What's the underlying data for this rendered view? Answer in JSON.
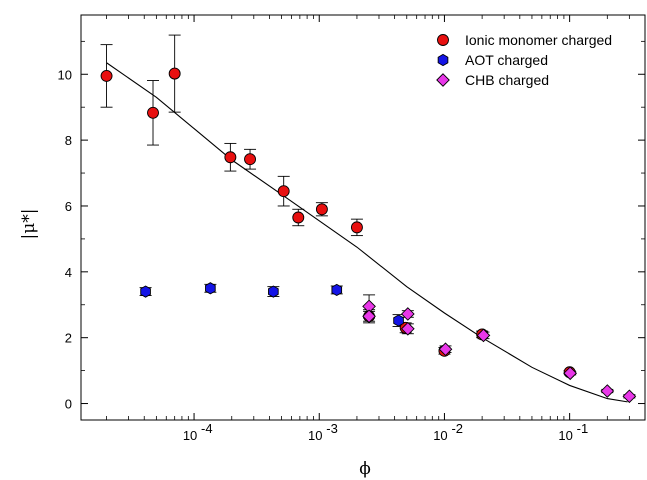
{
  "chart_data": {
    "type": "scatter",
    "xscale": "log",
    "xlim": [
      1.25e-05,
      0.4
    ],
    "ylim": [
      -0.5,
      11.8
    ],
    "xlabel": "ϕ",
    "ylabel": "|μ*|",
    "legend_position": "top-right",
    "x_ticks": [
      {
        "value": 0.0001,
        "label": "10",
        "exp": "-4"
      },
      {
        "value": 0.001,
        "label": "10",
        "exp": "-3"
      },
      {
        "value": 0.01,
        "label": "10",
        "exp": "-2"
      },
      {
        "value": 0.1,
        "label": "10",
        "exp": "-1"
      }
    ],
    "y_ticks": [
      {
        "value": 0,
        "label": "0"
      },
      {
        "value": 2,
        "label": "2"
      },
      {
        "value": 4,
        "label": "4"
      },
      {
        "value": 6,
        "label": "6"
      },
      {
        "value": 8,
        "label": "8"
      },
      {
        "value": 10,
        "label": "10"
      }
    ],
    "series": [
      {
        "name": "Ionic monomer charged",
        "marker": "circle",
        "color": "#e81010",
        "points": [
          {
            "x": 2e-05,
            "y": 9.95,
            "err": 0.95
          },
          {
            "x": 4.7e-05,
            "y": 8.83,
            "err": 0.98
          },
          {
            "x": 7e-05,
            "y": 10.02,
            "err": 1.17
          },
          {
            "x": 0.000195,
            "y": 7.48,
            "err": 0.42
          },
          {
            "x": 0.00028,
            "y": 7.42,
            "err": 0.3
          },
          {
            "x": 0.00052,
            "y": 6.45,
            "err": 0.45
          },
          {
            "x": 0.00068,
            "y": 5.65,
            "err": 0.25
          },
          {
            "x": 0.00105,
            "y": 5.9,
            "err": 0.2
          },
          {
            "x": 0.002,
            "y": 5.35,
            "err": 0.25
          },
          {
            "x": 0.0025,
            "y": 2.65,
            "err": 0.2
          },
          {
            "x": 0.0049,
            "y": 2.3,
            "err": 0.15
          },
          {
            "x": 0.01,
            "y": 1.6,
            "err": 0.1
          },
          {
            "x": 0.02,
            "y": 2.1,
            "err": 0.1
          },
          {
            "x": 0.1,
            "y": 0.95,
            "err": 0.05
          }
        ]
      },
      {
        "name": "AOT charged",
        "marker": "hexagon",
        "color": "#1414e6",
        "points": [
          {
            "x": 4.1e-05,
            "y": 3.4,
            "err": 0.12
          },
          {
            "x": 0.000135,
            "y": 3.5,
            "err": 0.12
          },
          {
            "x": 0.00043,
            "y": 3.4,
            "err": 0.15
          },
          {
            "x": 0.00138,
            "y": 3.45,
            "err": 0.12
          },
          {
            "x": 0.0043,
            "y": 2.52,
            "err": 0.18
          }
        ]
      },
      {
        "name": "CHB charged",
        "marker": "diamond",
        "color": "#e837e8",
        "points": [
          {
            "x": 0.0025,
            "y": 2.95,
            "err": 0.35
          },
          {
            "x": 0.0025,
            "y": 2.65,
            "err": 0.15
          },
          {
            "x": 0.0051,
            "y": 2.72,
            "err": 0.1
          },
          {
            "x": 0.0051,
            "y": 2.27,
            "err": 0.15
          },
          {
            "x": 0.0102,
            "y": 1.65,
            "err": 0.1
          },
          {
            "x": 0.0205,
            "y": 2.07,
            "err": 0.1
          },
          {
            "x": 0.101,
            "y": 0.92,
            "err": 0.05
          },
          {
            "x": 0.2,
            "y": 0.38,
            "err": 0.05
          },
          {
            "x": 0.3,
            "y": 0.22,
            "err": 0.05
          }
        ]
      }
    ],
    "fit_curve": {
      "name": "fit",
      "color": "#000000",
      "points": [
        {
          "x": 2e-05,
          "y": 10.35
        },
        {
          "x": 5e-05,
          "y": 9.3
        },
        {
          "x": 0.0001,
          "y": 8.35
        },
        {
          "x": 0.0002,
          "y": 7.4
        },
        {
          "x": 0.0005,
          "y": 6.35
        },
        {
          "x": 0.001,
          "y": 5.55
        },
        {
          "x": 0.002,
          "y": 4.75
        },
        {
          "x": 0.005,
          "y": 3.55
        },
        {
          "x": 0.01,
          "y": 2.75
        },
        {
          "x": 0.02,
          "y": 2.0
        },
        {
          "x": 0.05,
          "y": 1.1
        },
        {
          "x": 0.1,
          "y": 0.55
        },
        {
          "x": 0.2,
          "y": 0.15
        },
        {
          "x": 0.29,
          "y": 0.05
        }
      ]
    }
  }
}
